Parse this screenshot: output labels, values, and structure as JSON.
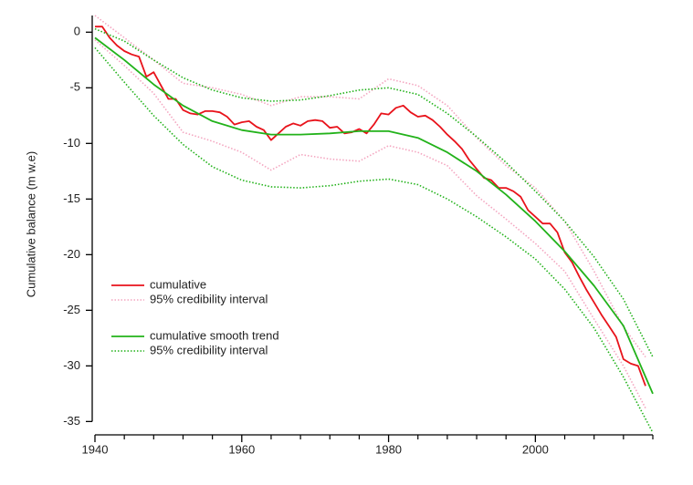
{
  "chart_data": {
    "type": "line",
    "y_label": "Cumulative balance (m w.e)",
    "xlim": [
      1940,
      2016
    ],
    "ylim": [
      -36.2,
      1.5
    ],
    "xticks": [
      1940,
      1960,
      1980,
      2000
    ],
    "xticks_minor": [
      1944,
      1948,
      1952,
      1956,
      1964,
      1968,
      1972,
      1976,
      1984,
      1988,
      1992,
      1996,
      2004,
      2008,
      2012,
      2016
    ],
    "yticks": [
      0,
      -5,
      -10,
      -15,
      -20,
      -25,
      -30,
      -35
    ],
    "legend": "lower left",
    "series": [
      {
        "name": "cumulative",
        "color": "#e8131b",
        "dash": false,
        "x": [
          1940,
          1941,
          1942,
          1943,
          1944,
          1945,
          1946,
          1947,
          1948,
          1949,
          1950,
          1951,
          1952,
          1953,
          1954,
          1955,
          1956,
          1957,
          1958,
          1959,
          1960,
          1961,
          1962,
          1963,
          1964,
          1965,
          1966,
          1967,
          1968,
          1969,
          1970,
          1971,
          1972,
          1973,
          1974,
          1975,
          1976,
          1977,
          1978,
          1979,
          1980,
          1981,
          1982,
          1983,
          1984,
          1985,
          1986,
          1987,
          1988,
          1989,
          1990,
          1991,
          1992,
          1993,
          1994,
          1995,
          1996,
          1997,
          1998,
          1999,
          2000,
          2001,
          2002,
          2003,
          2004,
          2005,
          2006,
          2007,
          2008,
          2009,
          2010,
          2011,
          2012,
          2013,
          2014,
          2015
        ],
        "values": [
          0.5,
          0.5,
          -0.5,
          -1.2,
          -1.7,
          -2,
          -2.2,
          -4,
          -3.6,
          -4.8,
          -6,
          -6,
          -7,
          -7.3,
          -7.4,
          -7.1,
          -7.1,
          -7.2,
          -7.6,
          -8.3,
          -8.1,
          -8,
          -8.5,
          -8.8,
          -9.7,
          -9.1,
          -8.5,
          -8.2,
          -8.4,
          -8,
          -7.9,
          -8,
          -8.6,
          -8.5,
          -9.1,
          -9,
          -8.7,
          -9.1,
          -8.3,
          -7.3,
          -7.4,
          -6.8,
          -6.6,
          -7.2,
          -7.6,
          -7.5,
          -7.9,
          -8.5,
          -9.2,
          -9.8,
          -10.5,
          -11.5,
          -12.3,
          -13.1,
          -13.3,
          -14,
          -14,
          -14.3,
          -14.8,
          -16,
          -16.6,
          -17.2,
          -17.2,
          -18,
          -19.8,
          -20.7,
          -22,
          -23.2,
          -24.3,
          -25.4,
          -26.4,
          -27.4,
          -29.4,
          -29.8,
          -30,
          -31.8
        ]
      },
      {
        "name": "95% credibility interval",
        "color": "#f4a6c0",
        "dash": true,
        "x": [
          1940,
          1944,
          1948,
          1952,
          1956,
          1960,
          1964,
          1968,
          1972,
          1976,
          1980,
          1984,
          1988,
          1992,
          1996,
          2000,
          2004,
          2008,
          2012,
          2015
        ],
        "values": [
          1.5,
          -0.5,
          -2.5,
          -4.6,
          -5,
          -5.6,
          -6.6,
          -5.8,
          -5.8,
          -6,
          -4.2,
          -4.8,
          -6.6,
          -9.5,
          -12,
          -14,
          -17,
          -21.5,
          -26.5,
          -29.2
        ]
      },
      {
        "color": "#f4a6c0",
        "dash": true,
        "x": [
          1940,
          1944,
          1948,
          1952,
          1956,
          1960,
          1964,
          1968,
          1972,
          1976,
          1980,
          1984,
          1988,
          1992,
          1996,
          2000,
          2004,
          2008,
          2012,
          2015
        ],
        "values": [
          -0.7,
          -3,
          -5.5,
          -9,
          -9.8,
          -10.8,
          -12.4,
          -11,
          -11.4,
          -11.6,
          -10.2,
          -10.8,
          -12,
          -14.7,
          -16.8,
          -19,
          -21.5,
          -25.8,
          -30,
          -33.8
        ]
      },
      {
        "name": "cumulative smooth trend",
        "color": "#22b21a",
        "dash": false,
        "x": [
          1940,
          1944,
          1948,
          1952,
          1956,
          1960,
          1964,
          1968,
          1972,
          1976,
          1980,
          1984,
          1988,
          1992,
          1996,
          2000,
          2004,
          2008,
          2012,
          2016
        ],
        "values": [
          -0.5,
          -2.5,
          -4.7,
          -6.6,
          -8,
          -8.8,
          -9.2,
          -9.2,
          -9.1,
          -8.9,
          -8.9,
          -9.5,
          -10.8,
          -12.5,
          -14.6,
          -17,
          -19.7,
          -22.8,
          -26.4,
          -32.5
        ]
      },
      {
        "name": "95% credibility interval",
        "color": "#22b21a",
        "dash": true,
        "x": [
          1940,
          1944,
          1948,
          1952,
          1956,
          1960,
          1964,
          1968,
          1972,
          1976,
          1980,
          1984,
          1988,
          1992,
          1996,
          2000,
          2004,
          2008,
          2012,
          2016
        ],
        "values": [
          0.3,
          -0.8,
          -2.5,
          -4.1,
          -5.2,
          -5.9,
          -6.2,
          -6.1,
          -5.7,
          -5.2,
          -5,
          -5.6,
          -7.3,
          -9.4,
          -11.7,
          -14.3,
          -17,
          -20.2,
          -24,
          -29.2
        ]
      },
      {
        "color": "#22b21a",
        "dash": true,
        "x": [
          1940,
          1944,
          1948,
          1952,
          1956,
          1960,
          1964,
          1968,
          1972,
          1976,
          1980,
          1984,
          1988,
          1992,
          1996,
          2000,
          2004,
          2008,
          2012,
          2016
        ],
        "values": [
          -1.4,
          -4.5,
          -7.5,
          -10.1,
          -12.1,
          -13.3,
          -13.9,
          -14,
          -13.8,
          -13.4,
          -13.2,
          -13.7,
          -15,
          -16.6,
          -18.4,
          -20.4,
          -23.1,
          -26.6,
          -31,
          -36
        ]
      }
    ]
  }
}
